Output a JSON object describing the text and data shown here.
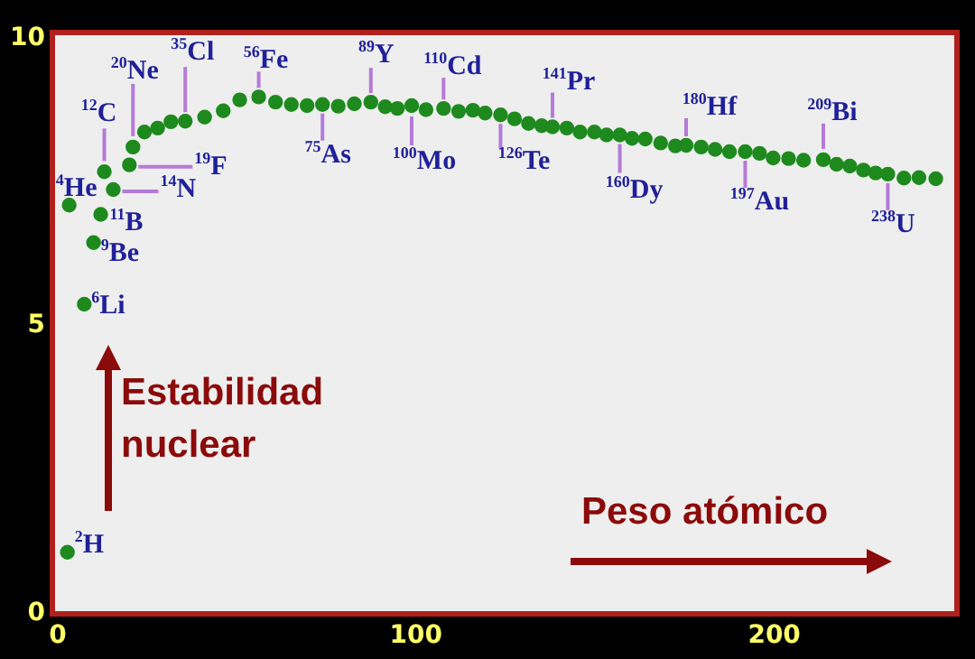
{
  "chart_data": {
    "type": "scatter",
    "xlabel": "Peso atómico",
    "ylabel": "Estabilidad nuclear",
    "marker": "circle",
    "series": [
      {
        "color": "#1e8a1e",
        "x": [
          2.7,
          3.2,
          7.4,
          10.0,
          12.0,
          13.0,
          15.5,
          20.0,
          21.0,
          24.2,
          27.9,
          31.6,
          35.6,
          41.0,
          46.2,
          50.8,
          56.1,
          60.8,
          65.2,
          69.6,
          73.9,
          78.3,
          82.8,
          87.4,
          91.4,
          94.8,
          98.8,
          102.8,
          107.7,
          111.9,
          115.9,
          119.3,
          123.6,
          127.5,
          131.4,
          135.1,
          138.1,
          142.1,
          145.8,
          149.8,
          153.2,
          156.9,
          160.3,
          164.0,
          168.3,
          172.4,
          175.4,
          179.6,
          183.5,
          187.5,
          191.9,
          195.9,
          199.7,
          204.0,
          208.2,
          213.7,
          217.4,
          221.1,
          224.9,
          228.3,
          231.7,
          236.2,
          240.4,
          245.1
        ],
        "values": [
          1.07,
          7.1,
          5.38,
          6.45,
          6.94,
          7.68,
          7.37,
          7.8,
          8.11,
          8.37,
          8.44,
          8.55,
          8.56,
          8.63,
          8.74,
          8.93,
          8.98,
          8.89,
          8.85,
          8.83,
          8.85,
          8.82,
          8.86,
          8.89,
          8.81,
          8.78,
          8.83,
          8.76,
          8.78,
          8.73,
          8.75,
          8.7,
          8.67,
          8.6,
          8.52,
          8.48,
          8.46,
          8.44,
          8.37,
          8.37,
          8.32,
          8.32,
          8.26,
          8.25,
          8.18,
          8.13,
          8.14,
          8.11,
          8.07,
          8.03,
          8.03,
          8.0,
          7.92,
          7.91,
          7.88,
          7.89,
          7.81,
          7.78,
          7.71,
          7.66,
          7.64,
          7.57,
          7.58,
          7.56
        ]
      }
    ],
    "xlim": [
      -1.5,
      251
    ],
    "ylim": [
      0,
      10.1
    ],
    "xticks": [
      0,
      100,
      200
    ],
    "yticks": [
      0,
      5,
      10
    ],
    "annotations": [
      {
        "text": "$^{2}$H",
        "x": 2.7,
        "y": 1.07
      },
      {
        "text": "$^{4}$He",
        "x": 3.2,
        "y": 7.1
      },
      {
        "text": "$^{6}$Li",
        "x": 7.4,
        "y": 5.38
      },
      {
        "text": "$^{9}$Be",
        "x": 10.0,
        "y": 6.45
      },
      {
        "text": "$^{11}$B",
        "x": 12.0,
        "y": 6.94
      },
      {
        "text": "$^{12}$C",
        "x": 13.0,
        "y": 7.68
      },
      {
        "text": "$^{14}$N",
        "x": 15.5,
        "y": 7.37
      },
      {
        "text": "$^{19}$F",
        "x": 20.0,
        "y": 7.8
      },
      {
        "text": "$^{20}$Ne",
        "x": 21.0,
        "y": 8.11
      },
      {
        "text": "$^{35}$Cl",
        "x": 35.6,
        "y": 8.56
      },
      {
        "text": "$^{56}$Fe",
        "x": 56.1,
        "y": 8.98
      },
      {
        "text": "$^{75}$As",
        "x": 73.9,
        "y": 8.85
      },
      {
        "text": "$^{89}$Y",
        "x": 87.4,
        "y": 8.89
      },
      {
        "text": "$^{100}$Mo",
        "x": 98.8,
        "y": 8.83
      },
      {
        "text": "$^{110}$Cd",
        "x": 107.7,
        "y": 8.78
      },
      {
        "text": "$^{126}$Te",
        "x": 123.6,
        "y": 8.67
      },
      {
        "text": "$^{141}$Pr",
        "x": 138.1,
        "y": 8.46
      },
      {
        "text": "$^{160}$Dy",
        "x": 156.9,
        "y": 8.32
      },
      {
        "text": "$^{180}$Hf",
        "x": 175.4,
        "y": 8.14
      },
      {
        "text": "$^{197}$Au",
        "x": 191.9,
        "y": 8.03
      },
      {
        "text": "$^{209}$Bi",
        "x": 213.7,
        "y": 7.89
      },
      {
        "text": "$^{238}$U",
        "x": 231.7,
        "y": 7.64
      }
    ]
  }
}
